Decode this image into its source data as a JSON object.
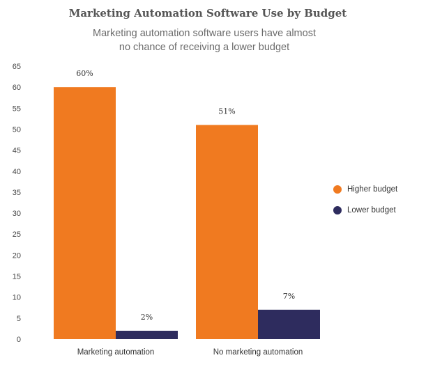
{
  "chart_data": {
    "type": "bar",
    "title": "Marketing Automation Software Use by Budget",
    "subtitle": "Marketing automation software users have almost\nno chance of receiving a lower budget",
    "categories": [
      "Marketing automation",
      "No marketing automation"
    ],
    "series": [
      {
        "name": "Higher budget",
        "values": [
          60,
          51
        ],
        "labels": [
          "60%",
          "51%"
        ],
        "color": "#f07a20"
      },
      {
        "name": "Lower budget",
        "values": [
          2,
          7
        ],
        "labels": [
          "2%",
          "7%"
        ],
        "color": "#2e2c5e"
      }
    ],
    "ylim": [
      0,
      65
    ],
    "yticks": [
      0,
      5,
      10,
      15,
      20,
      25,
      30,
      35,
      40,
      45,
      50,
      55,
      60,
      65
    ],
    "xlabel": "",
    "ylabel": "",
    "grid": false,
    "legend_position": "right"
  }
}
